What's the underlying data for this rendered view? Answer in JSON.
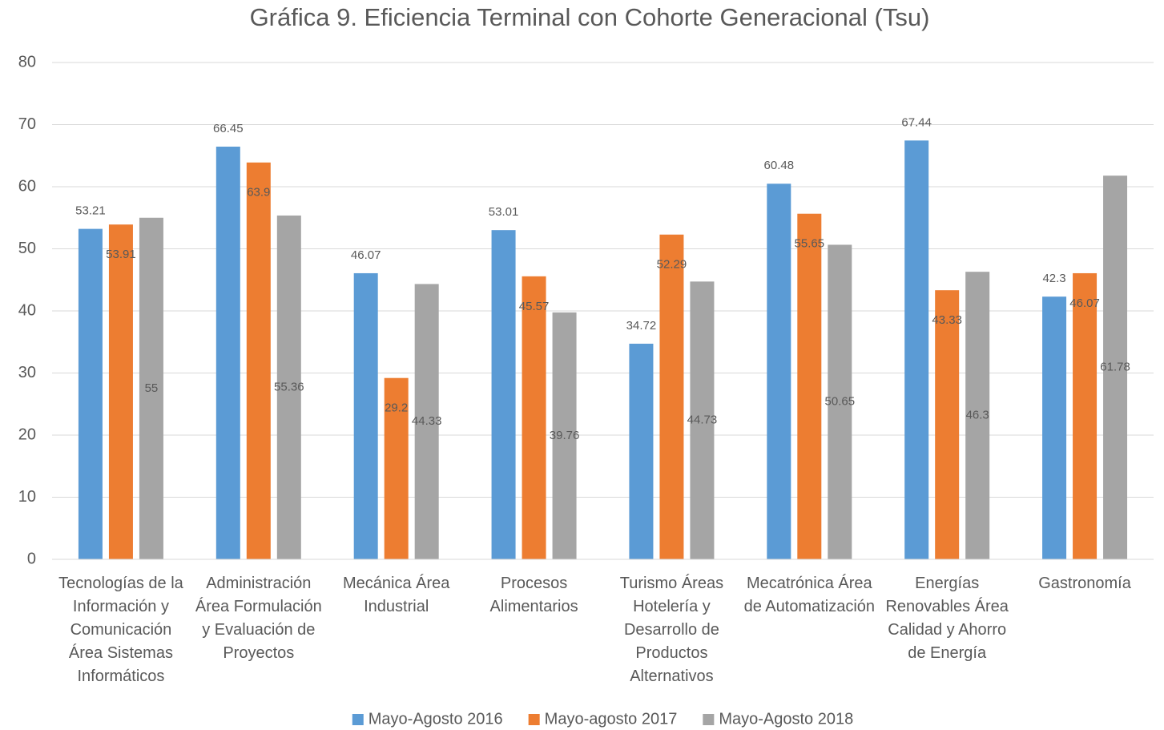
{
  "chart_data": {
    "type": "bar",
    "title": "Gráfica 9. Eficiencia Terminal con Cohorte Generacional (Tsu)",
    "categories": [
      "Tecnologías de la Información y Comunicación Área Sistemas Informáticos",
      "Administración Área Formulación y Evaluación de Proyectos",
      "Mecánica Área Industrial",
      "Procesos Alimentarios",
      "Turismo Áreas Hotelería y Desarrollo de Productos Alternativos",
      "Mecatrónica Área de Automatización",
      "Energías Renovables Área Calidad y Ahorro de Energía",
      "Gastronomía"
    ],
    "series": [
      {
        "name": "Mayo-Agosto 2016",
        "color": "#5b9bd5",
        "values": [
          53.21,
          66.45,
          46.07,
          53.01,
          34.72,
          60.48,
          67.44,
          42.3
        ]
      },
      {
        "name": "Mayo-agosto 2017",
        "color": "#ed7d31",
        "values": [
          53.91,
          63.9,
          29.2,
          45.57,
          52.29,
          55.65,
          43.33,
          46.07
        ]
      },
      {
        "name": "Mayo-Agosto 2018",
        "color": "#a5a5a5",
        "values": [
          55,
          55.36,
          44.33,
          39.76,
          44.73,
          50.65,
          46.3,
          61.78
        ]
      }
    ],
    "ylim": [
      0,
      80
    ],
    "yticks": [
      0,
      10,
      20,
      30,
      40,
      50,
      60,
      70,
      80
    ],
    "grid": true,
    "legend": "bottom"
  }
}
